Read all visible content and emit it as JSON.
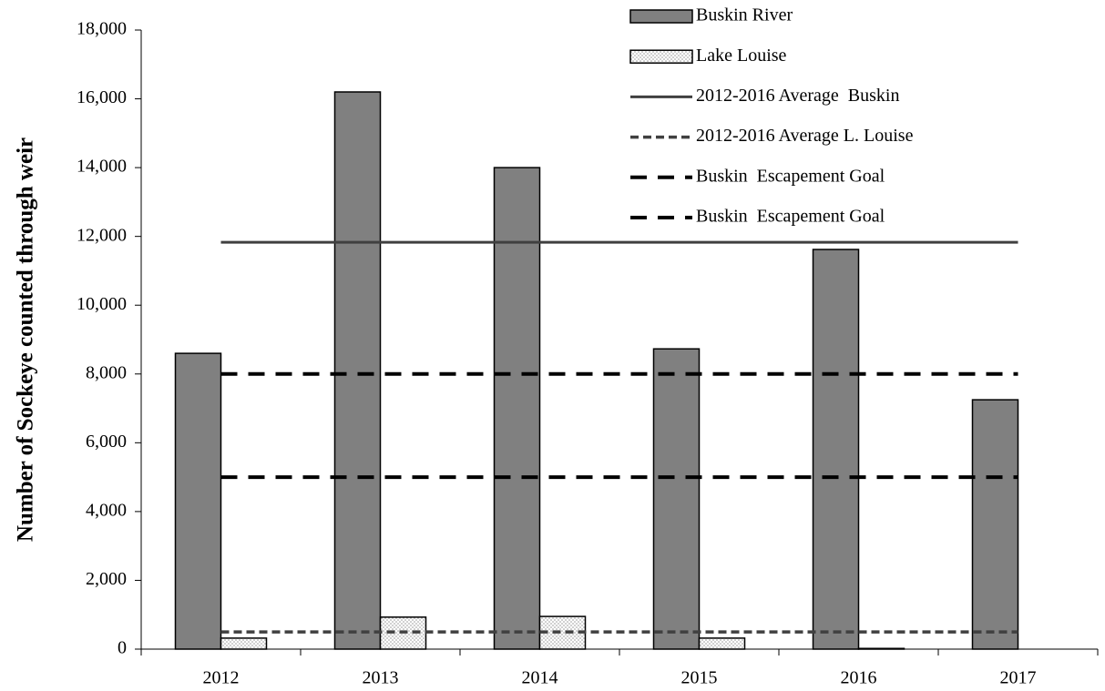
{
  "chart_data": {
    "type": "bar",
    "y_label": "Number of Sockeye counted through weir",
    "categories": [
      "2012",
      "2013",
      "2014",
      "2015",
      "2016",
      "2017"
    ],
    "series": [
      {
        "name": "Buskin River",
        "type": "bar",
        "color": "#808080",
        "values": [
          8600,
          16200,
          14000,
          8730,
          11620,
          7250
        ]
      },
      {
        "name": "Lake Louise",
        "type": "bar",
        "color": "#9a9a9a",
        "pattern": "dots",
        "values": [
          320,
          930,
          950,
          320,
          20,
          null
        ]
      },
      {
        "name": "2012-2016 Average  Buskin",
        "type": "line",
        "color": "#404040",
        "dash": "solid",
        "values": [
          11830,
          11830,
          11830,
          11830,
          11830,
          11830
        ]
      },
      {
        "name": "2012-2016 Average L. Louise",
        "type": "line",
        "color": "#404040",
        "dash": "short",
        "values": [
          500,
          500,
          500,
          500,
          500,
          500
        ]
      },
      {
        "name": "Buskin  Escapement Goal",
        "type": "line",
        "color": "#000000",
        "dash": "long",
        "values": [
          8000,
          8000,
          8000,
          8000,
          8000,
          8000
        ]
      },
      {
        "name": "Buskin  Escapement Goal",
        "type": "line",
        "color": "#000000",
        "dash": "long",
        "values": [
          5000,
          5000,
          5000,
          5000,
          5000,
          5000
        ]
      }
    ],
    "ylim": [
      0,
      18000
    ],
    "yticks": [
      0,
      {
        "value": 2000,
        "label": "2,000"
      },
      {
        "value": 4000,
        "label": "4,000"
      },
      {
        "value": 6000,
        "label": "6,000"
      },
      {
        "value": 8000,
        "label": "8,000"
      },
      {
        "value": 10000,
        "label": "10,000"
      },
      {
        "value": 12000,
        "label": "12,000"
      },
      {
        "value": 14000,
        "label": "14,000"
      },
      {
        "value": 16000,
        "label": "16,000"
      },
      {
        "value": 18000,
        "label": "18,000"
      }
    ],
    "grid": false,
    "legend": "top-right"
  }
}
